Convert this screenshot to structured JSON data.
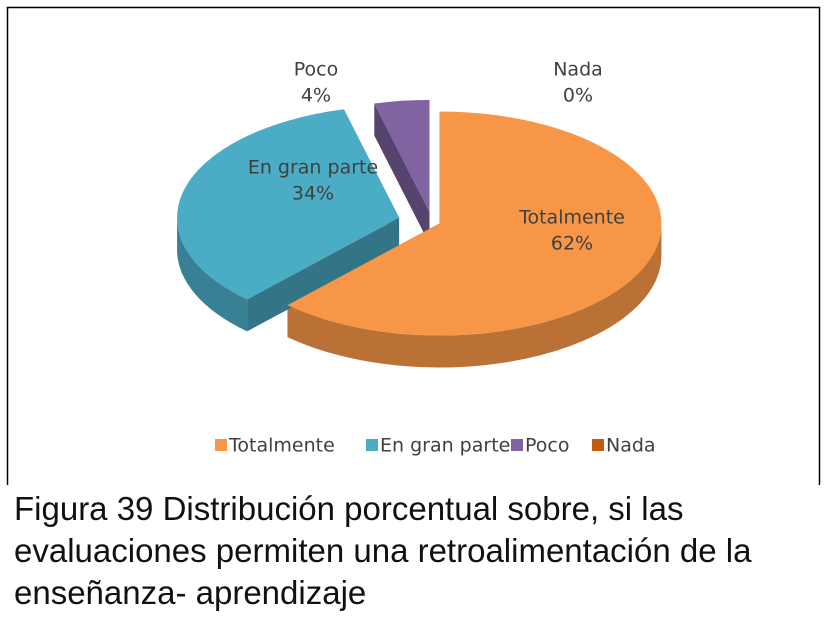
{
  "chart_data": {
    "type": "pie",
    "categories": [
      "Totalmente",
      "En gran parte",
      "Poco",
      "Nada"
    ],
    "values": [
      62,
      34,
      4,
      0
    ],
    "value_labels": [
      "62%",
      "34%",
      "4%",
      "0%"
    ],
    "colors": [
      "#f79646",
      "#4bacc6",
      "#8064a2",
      "#c55a11"
    ],
    "legend": "bottom",
    "caption": "Figura 39 Distribución porcentual sobre, si las evaluaciones permiten una retroalimentación de la enseñanza- aprendizaje"
  }
}
